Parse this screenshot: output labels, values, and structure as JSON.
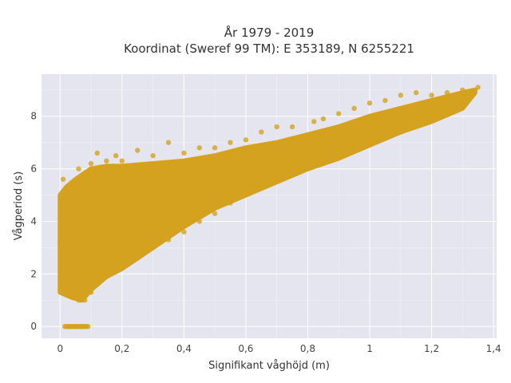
{
  "chart_data": {
    "type": "scatter",
    "title": "År 1979 - 2019",
    "subtitle": "Koordinat (Sweref 99 TM): E 353189, N 6255221",
    "xlabel": "Signifikant våghöjd (m)",
    "ylabel": "Vågperiod (s)",
    "xlim": [
      -0.06,
      1.41
    ],
    "ylim": [
      -0.45,
      9.6
    ],
    "x_ticks": [
      0,
      0.2,
      0.4,
      0.6,
      0.8,
      1,
      1.2,
      1.4
    ],
    "x_tick_labels": [
      "0",
      "0,2",
      "0,4",
      "0,6",
      "0,8",
      "1",
      "1,2",
      "1,4"
    ],
    "y_ticks": [
      0,
      2,
      4,
      6,
      8
    ],
    "y_tick_labels": [
      "0",
      "2",
      "4",
      "6",
      "8"
    ],
    "grid": true,
    "marker_color": "#D4A21E",
    "plot_background": "#E5E5F0",
    "series": [
      {
        "values": [
          [
            0.0,
            1.4
          ],
          [
            0.0,
            3.2
          ],
          [
            0.01,
            5.6
          ],
          [
            0.02,
            1.2
          ],
          [
            0.02,
            4.9
          ],
          [
            0.03,
            0.0
          ],
          [
            0.04,
            1.1
          ],
          [
            0.04,
            5.4
          ],
          [
            0.05,
            0.0
          ],
          [
            0.06,
            1.0
          ],
          [
            0.06,
            6.0
          ],
          [
            0.07,
            0.0
          ],
          [
            0.08,
            1.0
          ],
          [
            0.08,
            5.8
          ],
          [
            0.09,
            0.0
          ],
          [
            0.1,
            1.3
          ],
          [
            0.1,
            6.2
          ],
          [
            0.12,
            1.6
          ],
          [
            0.12,
            6.6
          ],
          [
            0.15,
            1.9
          ],
          [
            0.15,
            6.3
          ],
          [
            0.18,
            2.1
          ],
          [
            0.18,
            6.5
          ],
          [
            0.2,
            2.3
          ],
          [
            0.2,
            6.3
          ],
          [
            0.25,
            2.6
          ],
          [
            0.25,
            6.7
          ],
          [
            0.3,
            3.0
          ],
          [
            0.3,
            6.5
          ],
          [
            0.35,
            3.3
          ],
          [
            0.35,
            7.0
          ],
          [
            0.4,
            3.6
          ],
          [
            0.4,
            6.6
          ],
          [
            0.45,
            4.0
          ],
          [
            0.45,
            6.8
          ],
          [
            0.5,
            4.3
          ],
          [
            0.5,
            6.8
          ],
          [
            0.55,
            4.7
          ],
          [
            0.55,
            7.0
          ],
          [
            0.6,
            5.0
          ],
          [
            0.6,
            7.1
          ],
          [
            0.65,
            5.3
          ],
          [
            0.65,
            7.4
          ],
          [
            0.7,
            5.6
          ],
          [
            0.7,
            7.6
          ],
          [
            0.75,
            5.8
          ],
          [
            0.75,
            7.6
          ],
          [
            0.8,
            6.0
          ],
          [
            0.82,
            7.8
          ],
          [
            0.85,
            6.2
          ],
          [
            0.85,
            7.9
          ],
          [
            0.9,
            6.5
          ],
          [
            0.9,
            8.1
          ],
          [
            0.95,
            6.7
          ],
          [
            0.95,
            8.3
          ],
          [
            1.0,
            7.0
          ],
          [
            1.0,
            8.5
          ],
          [
            1.05,
            7.2
          ],
          [
            1.05,
            8.6
          ],
          [
            1.1,
            7.4
          ],
          [
            1.1,
            8.8
          ],
          [
            1.15,
            7.7
          ],
          [
            1.15,
            8.9
          ],
          [
            1.2,
            7.9
          ],
          [
            1.2,
            8.8
          ],
          [
            1.25,
            8.2
          ],
          [
            1.25,
            8.9
          ],
          [
            1.3,
            8.6
          ],
          [
            1.3,
            9.0
          ],
          [
            1.35,
            9.1
          ]
        ]
      }
    ]
  }
}
